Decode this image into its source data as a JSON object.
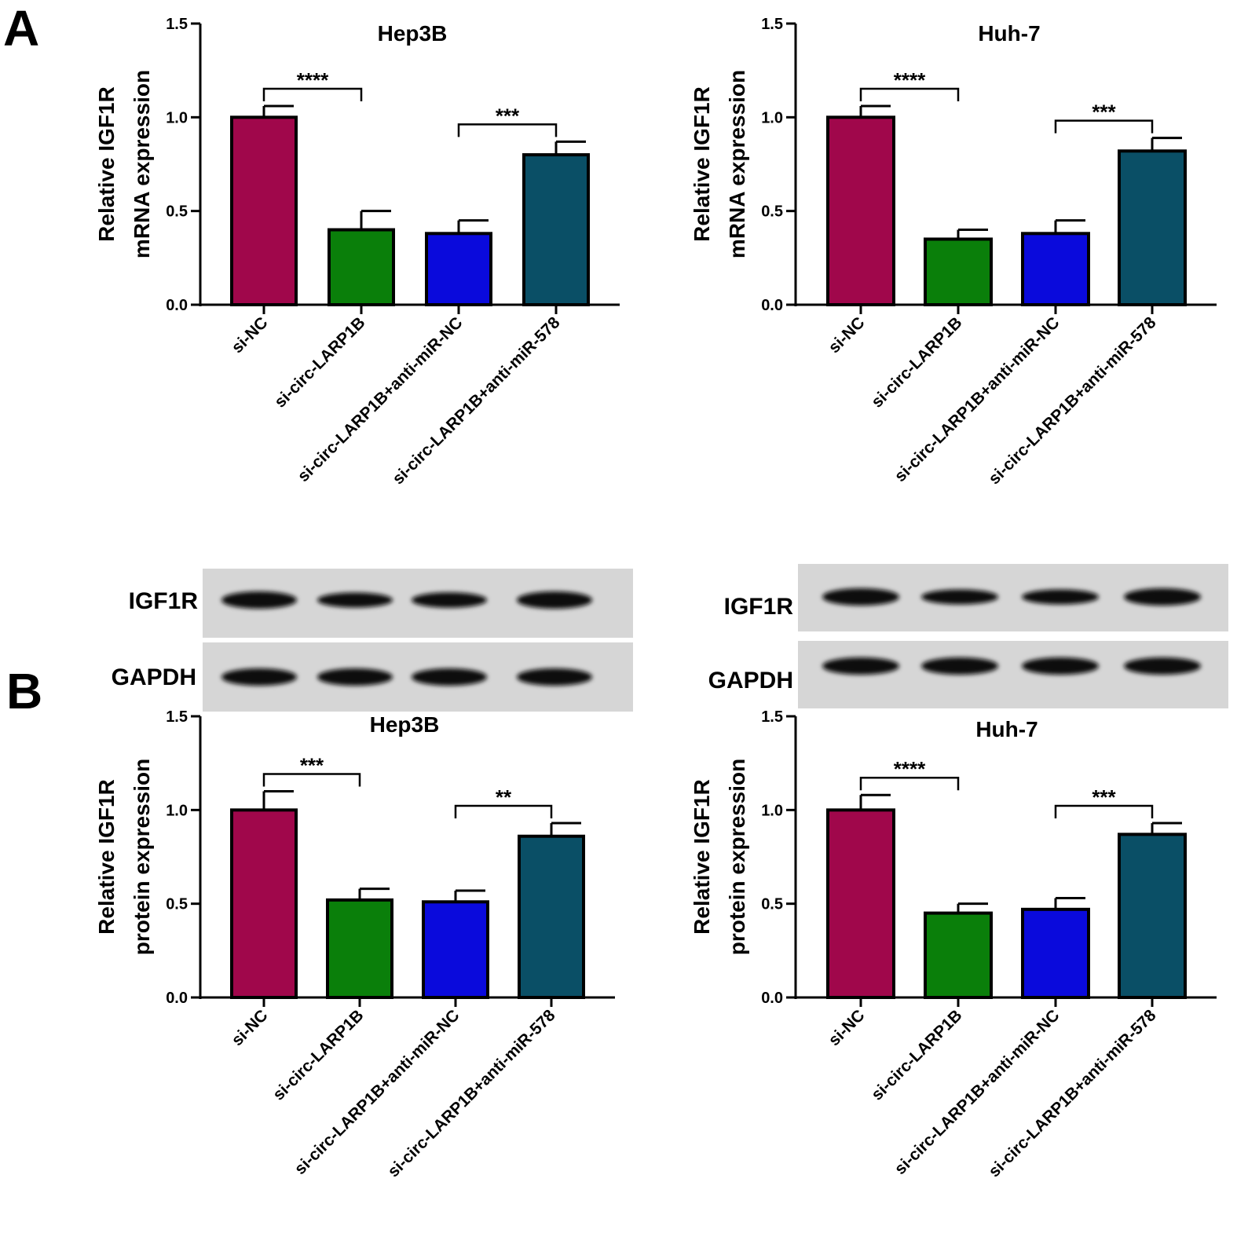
{
  "panel_letters": [
    "A",
    "B"
  ],
  "chart_data": [
    {
      "type": "bar",
      "title": "Hep3B",
      "ylabel": [
        "Relative IGF1R",
        "mRNA expression"
      ],
      "categories": [
        "si-NC",
        "si-circ-LARP1B",
        "si-circ-LARP1B+anti-miR-NC",
        "si-circ-LARP1B+anti-miR-578"
      ],
      "values": [
        1.0,
        0.4,
        0.38,
        0.8
      ],
      "errors": [
        0.06,
        0.1,
        0.07,
        0.07
      ],
      "colors": [
        "#a0074b",
        "#0a7f0a",
        "#0a0adc",
        "#0a4f66"
      ],
      "ylim": [
        0,
        1.5
      ],
      "yticks": [
        "0.0",
        "0.5",
        "1.0",
        "1.5"
      ],
      "significance": [
        {
          "from": 0,
          "to": 1,
          "label": "****"
        },
        {
          "from": 2,
          "to": 3,
          "label": "***"
        }
      ]
    },
    {
      "type": "bar",
      "title": "Huh-7",
      "ylabel": [
        "Relative IGF1R",
        "mRNA expression"
      ],
      "categories": [
        "si-NC",
        "si-circ-LARP1B",
        "si-circ-LARP1B+anti-miR-NC",
        "si-circ-LARP1B+anti-miR-578"
      ],
      "values": [
        1.0,
        0.35,
        0.38,
        0.82
      ],
      "errors": [
        0.06,
        0.05,
        0.07,
        0.07
      ],
      "colors": [
        "#a0074b",
        "#0a7f0a",
        "#0a0adc",
        "#0a4f66"
      ],
      "ylim": [
        0,
        1.5
      ],
      "yticks": [
        "0.0",
        "0.5",
        "1.0",
        "1.5"
      ],
      "significance": [
        {
          "from": 0,
          "to": 1,
          "label": "****"
        },
        {
          "from": 2,
          "to": 3,
          "label": "***"
        }
      ]
    },
    {
      "type": "bar",
      "title": "Hep3B",
      "ylabel": [
        "Relative IGF1R",
        "protein expression"
      ],
      "categories": [
        "si-NC",
        "si-circ-LARP1B",
        "si-circ-LARP1B+anti-miR-NC",
        "si-circ-LARP1B+anti-miR-578"
      ],
      "values": [
        1.0,
        0.52,
        0.51,
        0.86
      ],
      "errors": [
        0.1,
        0.06,
        0.06,
        0.07
      ],
      "colors": [
        "#a0074b",
        "#0a7f0a",
        "#0a0adc",
        "#0a4f66"
      ],
      "ylim": [
        0,
        1.5
      ],
      "yticks": [
        "0.0",
        "0.5",
        "1.0",
        "1.5"
      ],
      "significance": [
        {
          "from": 0,
          "to": 1,
          "label": "***"
        },
        {
          "from": 2,
          "to": 3,
          "label": "**"
        }
      ]
    },
    {
      "type": "bar",
      "title": "Huh-7",
      "ylabel": [
        "Relative IGF1R",
        "protein expression"
      ],
      "categories": [
        "si-NC",
        "si-circ-LARP1B",
        "si-circ-LARP1B+anti-miR-NC",
        "si-circ-LARP1B+anti-miR-578"
      ],
      "values": [
        1.0,
        0.45,
        0.47,
        0.87
      ],
      "errors": [
        0.08,
        0.05,
        0.06,
        0.06
      ],
      "colors": [
        "#a0074b",
        "#0a7f0a",
        "#0a0adc",
        "#0a4f66"
      ],
      "ylim": [
        0,
        1.5
      ],
      "yticks": [
        "0.0",
        "0.5",
        "1.0",
        "1.5"
      ],
      "significance": [
        {
          "from": 0,
          "to": 1,
          "label": "****"
        },
        {
          "from": 2,
          "to": 3,
          "label": "***"
        }
      ]
    }
  ],
  "blots": [
    {
      "labels": [
        "IGF1R",
        "GAPDH"
      ],
      "igf1r_band_strength": [
        1.0,
        0.7,
        0.75,
        1.0
      ],
      "gapdh_band_strength": [
        1.0,
        1.0,
        1.0,
        1.0
      ]
    },
    {
      "labels": [
        "IGF1R",
        "GAPDH"
      ],
      "igf1r_band_strength": [
        1.0,
        0.7,
        0.7,
        1.0
      ],
      "gapdh_band_strength": [
        1.0,
        1.0,
        1.0,
        1.0
      ]
    }
  ]
}
